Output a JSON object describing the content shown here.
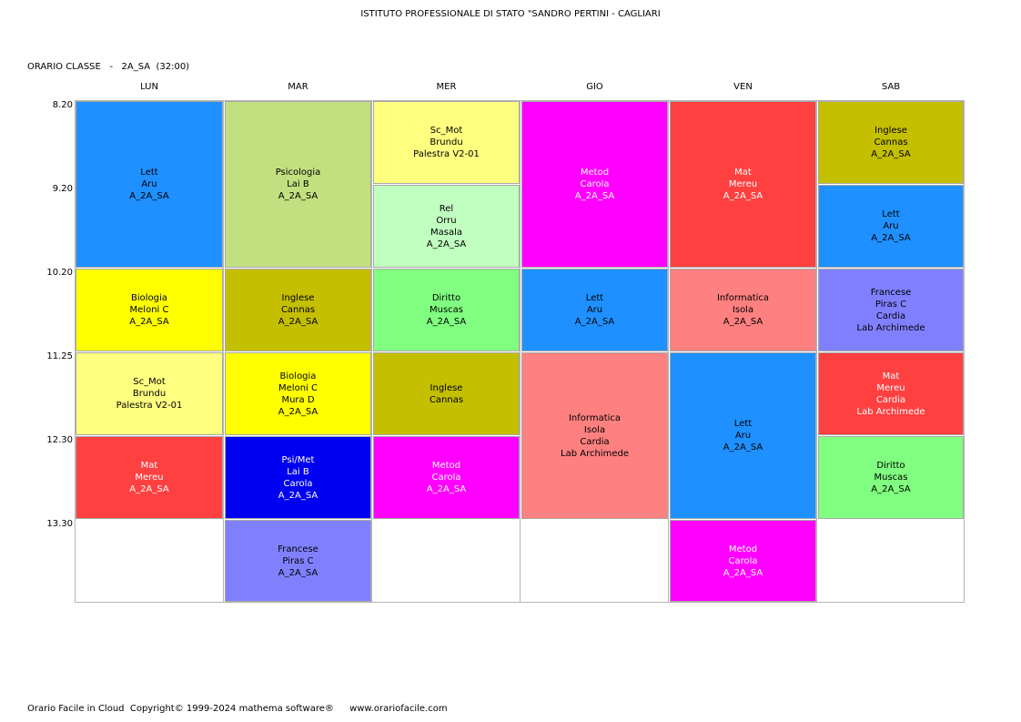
{
  "header": {
    "school": "ISTITUTO PROFESSIONALE DI STATO \"SANDRO PERTINI - CAGLIARI",
    "subtitle": "ORARIO CLASSE   -   2A_SA  (32:00)"
  },
  "days": [
    "LUN",
    "MAR",
    "MER",
    "GIO",
    "VEN",
    "SAB"
  ],
  "times": [
    "8.20",
    "9.20",
    "10.20",
    "11.25",
    "12.30",
    "13.30"
  ],
  "lessons": [
    {
      "day": 0,
      "start": 0,
      "span": 2,
      "color": "#1E90FF",
      "text_color": "#000000",
      "lines": [
        "Lett",
        "Aru",
        "A_2A_SA"
      ]
    },
    {
      "day": 0,
      "start": 2,
      "span": 1,
      "color": "#FFFF00",
      "text_color": "#000000",
      "lines": [
        "Biologia",
        "Meloni C",
        "A_2A_SA"
      ]
    },
    {
      "day": 0,
      "start": 3,
      "span": 1,
      "color": "#FFFF80",
      "text_color": "#000000",
      "lines": [
        "Sc_Mot",
        "Brundu",
        "Palestra V2-01"
      ]
    },
    {
      "day": 0,
      "start": 4,
      "span": 1,
      "color": "#FF4040",
      "text_color": "#FFFFFF",
      "lines": [
        "Mat",
        "Mereu",
        "A_2A_SA"
      ]
    },
    {
      "day": 1,
      "start": 0,
      "span": 2,
      "color": "#C2E080",
      "text_color": "#000000",
      "lines": [
        "Psicologia",
        "Lai B",
        "A_2A_SA"
      ]
    },
    {
      "day": 1,
      "start": 2,
      "span": 1,
      "color": "#C4BF00",
      "text_color": "#000000",
      "lines": [
        "Inglese",
        "Cannas",
        "A_2A_SA"
      ]
    },
    {
      "day": 1,
      "start": 3,
      "span": 1,
      "color": "#FFFF00",
      "text_color": "#000000",
      "lines": [
        "Biologia",
        "Meloni C",
        "Mura D",
        "A_2A_SA"
      ]
    },
    {
      "day": 1,
      "start": 4,
      "span": 1,
      "color": "#0000F0",
      "text_color": "#FFFFFF",
      "lines": [
        "Psi/Met",
        "Lai B",
        "Carola",
        "A_2A_SA"
      ]
    },
    {
      "day": 1,
      "start": 5,
      "span": 1,
      "color": "#8080FF",
      "text_color": "#000000",
      "lines": [
        "Francese",
        "Piras C",
        "A_2A_SA"
      ]
    },
    {
      "day": 2,
      "start": 0,
      "span": 1,
      "color": "#FFFF80",
      "text_color": "#000000",
      "lines": [
        "Sc_Mot",
        "Brundu",
        "Palestra V2-01"
      ]
    },
    {
      "day": 2,
      "start": 1,
      "span": 1,
      "color": "#C0FFC0",
      "text_color": "#000000",
      "lines": [
        "Rel",
        "Orru",
        "Masala",
        "A_2A_SA"
      ]
    },
    {
      "day": 2,
      "start": 2,
      "span": 1,
      "color": "#80FF80",
      "text_color": "#000000",
      "lines": [
        "Diritto",
        "Muscas",
        "A_2A_SA"
      ]
    },
    {
      "day": 2,
      "start": 3,
      "span": 1,
      "color": "#C4BF00",
      "text_color": "#000000",
      "lines": [
        "Inglese",
        "Cannas"
      ]
    },
    {
      "day": 2,
      "start": 4,
      "span": 1,
      "color": "#FF00FF",
      "text_color": "#FFFFFF",
      "lines": [
        "Metod",
        "Carola",
        "A_2A_SA"
      ]
    },
    {
      "day": 3,
      "start": 0,
      "span": 2,
      "color": "#FF00FF",
      "text_color": "#FFFFFF",
      "lines": [
        "Metod",
        "Carola",
        "A_2A_SA"
      ]
    },
    {
      "day": 3,
      "start": 2,
      "span": 1,
      "color": "#1E90FF",
      "text_color": "#000000",
      "lines": [
        "Lett",
        "Aru",
        "A_2A_SA"
      ]
    },
    {
      "day": 3,
      "start": 3,
      "span": 2,
      "color": "#FF8080",
      "text_color": "#000000",
      "lines": [
        "Informatica",
        "Isola",
        "Cardia",
        "Lab Archimede"
      ]
    },
    {
      "day": 4,
      "start": 0,
      "span": 2,
      "color": "#FF4040",
      "text_color": "#FFFFFF",
      "lines": [
        "Mat",
        "Mereu",
        "A_2A_SA"
      ]
    },
    {
      "day": 4,
      "start": 2,
      "span": 1,
      "color": "#FF8080",
      "text_color": "#000000",
      "lines": [
        "Informatica",
        "Isola",
        "A_2A_SA"
      ]
    },
    {
      "day": 4,
      "start": 3,
      "span": 2,
      "color": "#1E90FF",
      "text_color": "#000000",
      "lines": [
        "Lett",
        "Aru",
        "A_2A_SA"
      ]
    },
    {
      "day": 4,
      "start": 5,
      "span": 1,
      "color": "#FF00FF",
      "text_color": "#FFFFFF",
      "lines": [
        "Metod",
        "Carola",
        "A_2A_SA"
      ]
    },
    {
      "day": 5,
      "start": 0,
      "span": 1,
      "color": "#C4BF00",
      "text_color": "#000000",
      "lines": [
        "Inglese",
        "Cannas",
        "A_2A_SA"
      ]
    },
    {
      "day": 5,
      "start": 1,
      "span": 1,
      "color": "#1E90FF",
      "text_color": "#000000",
      "lines": [
        "Lett",
        "Aru",
        "A_2A_SA"
      ]
    },
    {
      "day": 5,
      "start": 2,
      "span": 1,
      "color": "#8080FF",
      "text_color": "#000000",
      "lines": [
        "Francese",
        "Piras C",
        "Cardia",
        "Lab Archimede"
      ]
    },
    {
      "day": 5,
      "start": 3,
      "span": 1,
      "color": "#FF4040",
      "text_color": "#FFFFFF",
      "lines": [
        "Mat",
        "Mereu",
        "Cardia",
        "Lab Archimede"
      ]
    },
    {
      "day": 5,
      "start": 4,
      "span": 1,
      "color": "#80FF80",
      "text_color": "#000000",
      "lines": [
        "Diritto",
        "Muscas",
        "A_2A_SA"
      ]
    }
  ],
  "footer": {
    "copyright": "Orario Facile in Cloud  Copyright© 1999-2024 mathema software®",
    "url": "www.orariofacile.com"
  }
}
